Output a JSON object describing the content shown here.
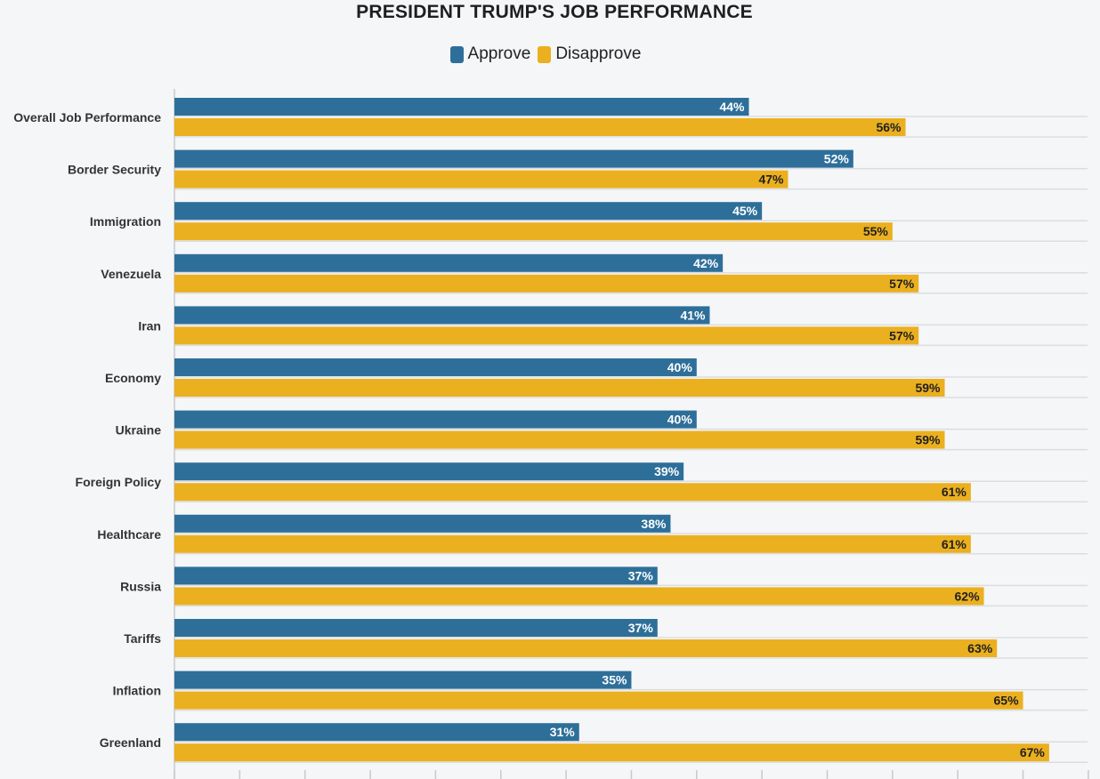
{
  "chart_data": {
    "type": "bar",
    "orientation": "horizontal",
    "title": "PRESIDENT TRUMP'S JOB PERFORMANCE",
    "categories": [
      "Overall Job Performance",
      "Border Security",
      "Immigration",
      "Venezuela",
      "Iran",
      "Economy",
      "Ukraine",
      "Foreign Policy",
      "Healthcare",
      "Russia",
      "Tariffs",
      "Inflation",
      "Greenland"
    ],
    "series": [
      {
        "name": "Approve",
        "color": "#2e6f9a",
        "label_color": "#ffffff",
        "values": [
          44,
          52,
          45,
          42,
          41,
          40,
          40,
          39,
          38,
          37,
          37,
          35,
          31
        ]
      },
      {
        "name": "Disapprove",
        "color": "#ebb01f",
        "label_color": "#1f1f1f",
        "values": [
          56,
          47,
          55,
          57,
          57,
          59,
          59,
          61,
          61,
          62,
          63,
          65,
          67
        ]
      }
    ],
    "value_suffix": "%",
    "xlim": [
      0,
      70
    ],
    "legend": "top-center",
    "grid": true
  }
}
